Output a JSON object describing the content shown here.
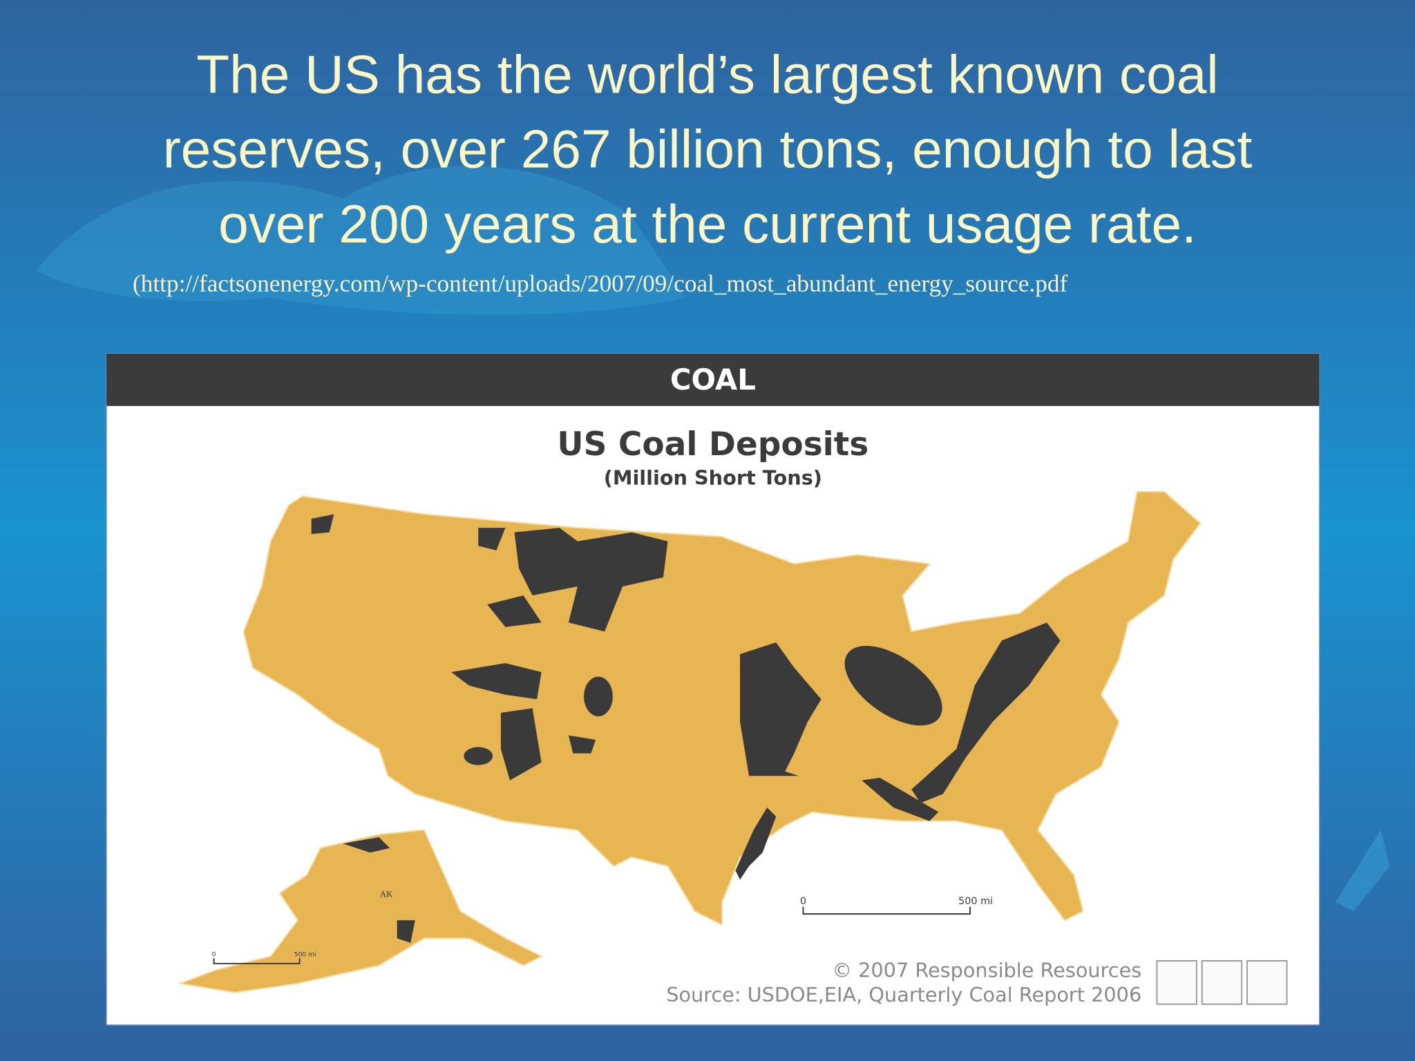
{
  "slide": {
    "title_lines": [
      "The US has the world’s largest known coal",
      "reserves, over 267 billion tons, enough to last",
      "over 200 years at the current usage rate."
    ],
    "source_url": "(http://factsonenergy.com/wp-content/uploads/2007/09/coal_most_abundant_energy_source.pdf"
  },
  "map": {
    "header": "COAL",
    "title": "US Coal Deposits",
    "subtitle": "(Million Short Tons)",
    "alaska_label": "AK",
    "scale_bars": [
      {
        "start": "0",
        "end": "500 mi"
      },
      {
        "start": "0",
        "end": "500 mi"
      }
    ],
    "copyright": "© 2007 Responsible Resources",
    "source": "Source: USDOE,EIA, Quarterly Coal Report 2006"
  }
}
